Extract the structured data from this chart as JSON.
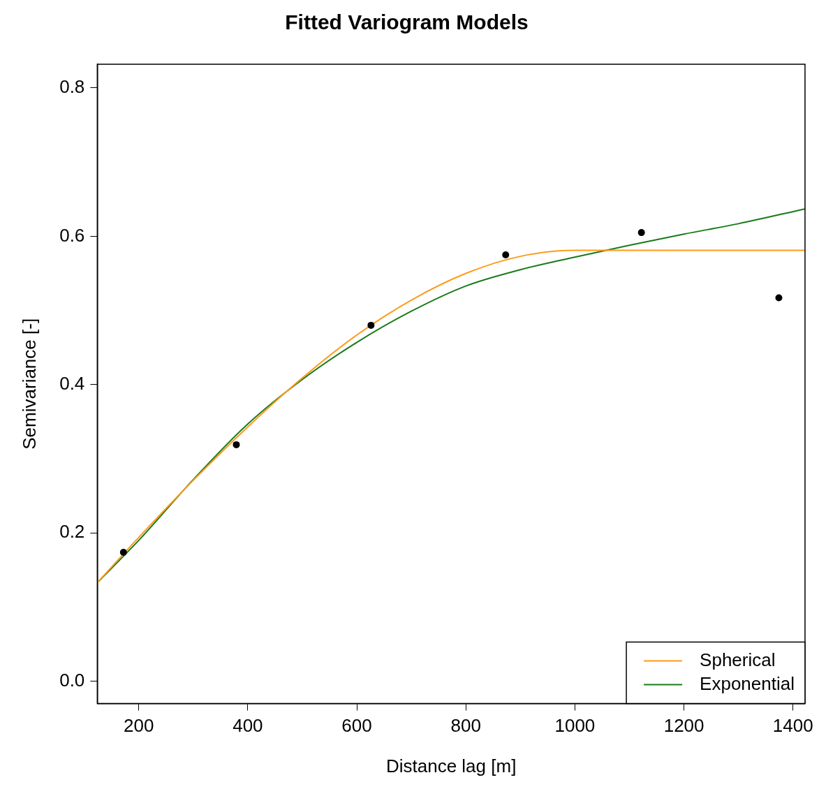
{
  "chart_data": {
    "type": "scatter",
    "title": "Fitted Variogram Models",
    "xlabel": "Distance lag [m]",
    "ylabel": "Semivariance [-]",
    "xlim": [
      124,
      1422
    ],
    "ylim": [
      -0.03,
      0.832
    ],
    "xticks": [
      200,
      400,
      600,
      800,
      1000,
      1200,
      1400
    ],
    "yticks": [
      {
        "value": 0,
        "label": "0.0"
      },
      0.2,
      0.4,
      0.6,
      0.8
    ],
    "grid": false,
    "legend": "bottom right",
    "series": [
      {
        "color": "#000000",
        "marker": "circle",
        "x": [
          172,
          379,
          626,
          873,
          1122,
          1374
        ],
        "values": [
          0.174,
          0.319,
          0.48,
          0.575,
          0.605,
          0.517
        ]
      },
      {
        "type": "line",
        "name": "Spherical",
        "color": "#ff9a1a",
        "marker": "none",
        "line_style": "solid",
        "x": [
          124,
          200,
          300,
          400,
          500,
          600,
          700,
          800,
          900,
          1000,
          1422
        ],
        "values": [
          0.133,
          0.194,
          0.271,
          0.343,
          0.409,
          0.467,
          0.514,
          0.55,
          0.573,
          0.581,
          0.581
        ]
      },
      {
        "type": "line",
        "name": "Exponential",
        "color": "#1a7a1a",
        "marker": "none",
        "line_style": "solid",
        "x": [
          124,
          200,
          300,
          400,
          500,
          600,
          700,
          800,
          900,
          1000,
          1100,
          1200,
          1300,
          1422
        ],
        "values": [
          0.133,
          0.19,
          0.272,
          0.347,
          0.407,
          0.457,
          0.499,
          0.533,
          0.555,
          0.572,
          0.588,
          0.603,
          0.617,
          0.637
        ]
      }
    ]
  }
}
